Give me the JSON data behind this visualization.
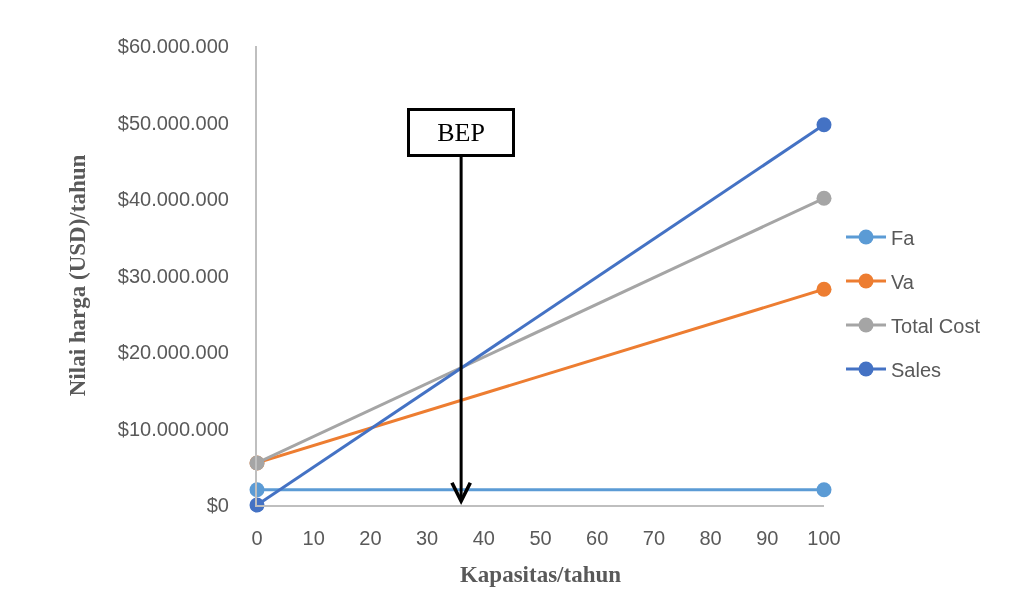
{
  "chart_data": {
    "type": "line",
    "xlabel": "Kapasitas/tahun",
    "ylabel": "Nilai harga (USD)/tahun",
    "x": [
      0,
      100
    ],
    "series": [
      {
        "name": "Fa",
        "color": "#5b9bd5",
        "values": [
          2000000,
          2000000
        ]
      },
      {
        "name": "Va",
        "color": "#ed7d31",
        "values": [
          5500000,
          28200000
        ]
      },
      {
        "name": "Total Cost",
        "color": "#a5a5a5",
        "values": [
          5500000,
          40100000
        ]
      },
      {
        "name": "Sales",
        "color": "#4472c4",
        "values": [
          0,
          49700000
        ]
      }
    ],
    "xlim": [
      0,
      100
    ],
    "xticks": [
      0,
      10,
      20,
      30,
      40,
      50,
      60,
      70,
      80,
      90,
      100
    ],
    "ylim": [
      0,
      60000000
    ],
    "yticks": [
      {
        "value": 0,
        "label": "$0"
      },
      {
        "value": 10000000,
        "label": "$10.000.000"
      },
      {
        "value": 20000000,
        "label": "$20.000.000"
      },
      {
        "value": 30000000,
        "label": "$30.000.000"
      },
      {
        "value": 40000000,
        "label": "$40.000.000"
      },
      {
        "value": 50000000,
        "label": "$50.000.000"
      },
      {
        "value": 60000000,
        "label": "$60.000.000"
      }
    ],
    "grid": false,
    "legend": "right",
    "marker": "circle",
    "line_style": "solid",
    "ref_lines": [
      {
        "axis": "x",
        "value": 36,
        "label": "BEP",
        "color": "#000000"
      }
    ]
  }
}
